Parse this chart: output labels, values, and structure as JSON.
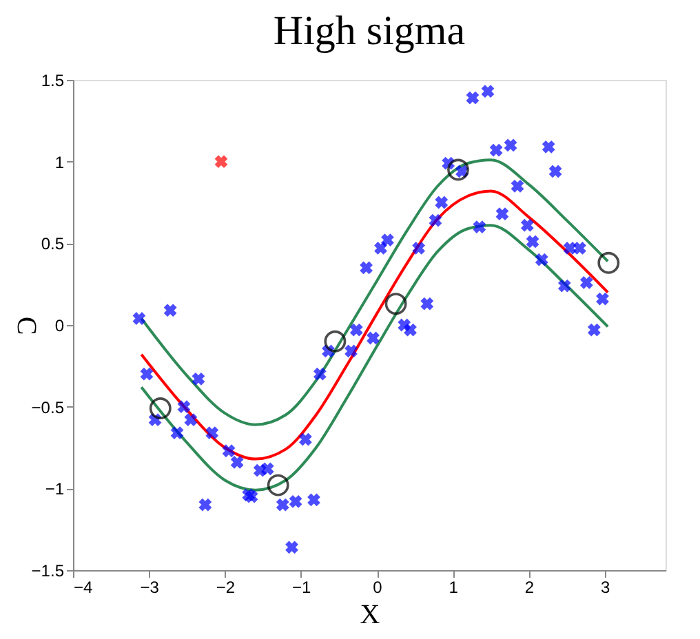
{
  "chart_data": {
    "type": "scatter",
    "title": "High sigma",
    "xlabel": "X",
    "ylabel": "C",
    "xlim": [
      -4,
      3.8
    ],
    "xticks": [
      -4,
      -3,
      -2,
      -1,
      0,
      1,
      2,
      3
    ],
    "ylim": [
      -1.5,
      1.5
    ],
    "yticks": [
      -1.5,
      -1,
      -0.5,
      0,
      0.5,
      1,
      1.5
    ],
    "grid": false,
    "series": [
      {
        "type": "line",
        "color": "#2e8b57",
        "line_style": "solid",
        "marker": "none",
        "x": [
          -3.1,
          -2.5,
          -2,
          -1.6,
          -1.2,
          -0.8,
          -0.4,
          0,
          0.4,
          0.8,
          1.2,
          1.5,
          2,
          2.5,
          3.04
        ],
        "values": [
          0.04,
          -0.31,
          -0.54,
          -0.61,
          -0.55,
          -0.34,
          -0.04,
          0.27,
          0.58,
          0.85,
          0.99,
          1.01,
          0.86,
          0.64,
          0.39
        ]
      },
      {
        "type": "line",
        "color": "#ff0000",
        "line_style": "solid",
        "marker": "none",
        "x": [
          -3.1,
          -2.5,
          -2,
          -1.6,
          -1.2,
          -0.8,
          -0.4,
          0,
          0.4,
          0.8,
          1.2,
          1.5,
          2,
          2.5,
          3.04
        ],
        "values": [
          -0.18,
          -0.52,
          -0.75,
          -0.82,
          -0.76,
          -0.55,
          -0.25,
          0.07,
          0.38,
          0.65,
          0.79,
          0.82,
          0.66,
          0.45,
          0.2
        ]
      },
      {
        "type": "line",
        "color": "#2e8b57",
        "line_style": "solid",
        "marker": "none",
        "x": [
          -3.1,
          -2.5,
          -2,
          -1.6,
          -1.2,
          -0.8,
          -0.4,
          0,
          0.4,
          0.8,
          1.2,
          1.5,
          2,
          2.5,
          3.04
        ],
        "values": [
          -0.38,
          -0.72,
          -0.95,
          -1.01,
          -0.95,
          -0.75,
          -0.45,
          -0.13,
          0.18,
          0.45,
          0.59,
          0.61,
          0.46,
          0.24,
          -0.01
        ]
      },
      {
        "color": "#0000ff",
        "marker": "cross",
        "x": [
          -3.13,
          -2.72,
          -3.03,
          -2.92,
          -2.63,
          -2.54,
          -2.45,
          -2.35,
          -2.26,
          -2.17,
          -1.95,
          -1.84,
          -1.69,
          -1.65,
          -1.54,
          -1.44,
          -1.24,
          -1.07,
          -0.94,
          -0.83,
          -1.12,
          -0.75,
          -0.64,
          0.94,
          1.12,
          1.26,
          1.46,
          1.57,
          1.76,
          2.26,
          2.35,
          1.85,
          0.85,
          0.77,
          1.65,
          1.35,
          1.98,
          2.05,
          2.17,
          2.54,
          2.67,
          0.55,
          0.14,
          0.05,
          -0.14,
          2.47,
          2.76,
          2.97,
          2.86,
          0.66,
          0.36,
          0.44,
          -0.05,
          -0.27,
          -0.34
        ],
        "values": [
          0.04,
          0.09,
          -0.3,
          -0.58,
          -0.66,
          -0.5,
          -0.58,
          -0.33,
          -1.1,
          -0.66,
          -0.77,
          -0.84,
          -1.04,
          -1.05,
          -0.89,
          -0.88,
          -1.1,
          -1.08,
          -0.7,
          -1.07,
          -1.36,
          -0.3,
          -0.16,
          0.99,
          0.94,
          1.39,
          1.43,
          1.07,
          1.1,
          1.09,
          0.94,
          0.85,
          0.75,
          0.64,
          0.68,
          0.6,
          0.61,
          0.51,
          0.4,
          0.47,
          0.47,
          0.47,
          0.52,
          0.47,
          0.35,
          0.24,
          0.26,
          0.16,
          -0.03,
          0.13,
          0.0,
          -0.03,
          -0.08,
          -0.03,
          -0.16
        ]
      },
      {
        "color": "#ff0000",
        "marker": "cross",
        "x": [
          -2.05
        ],
        "values": [
          1.0
        ]
      },
      {
        "color": "#000000",
        "marker": "circle",
        "x": [
          -2.85,
          -1.3,
          -0.55,
          0.25,
          1.07,
          3.05
        ],
        "values": [
          -0.51,
          -0.98,
          -0.1,
          0.13,
          0.95,
          0.38
        ]
      }
    ]
  }
}
